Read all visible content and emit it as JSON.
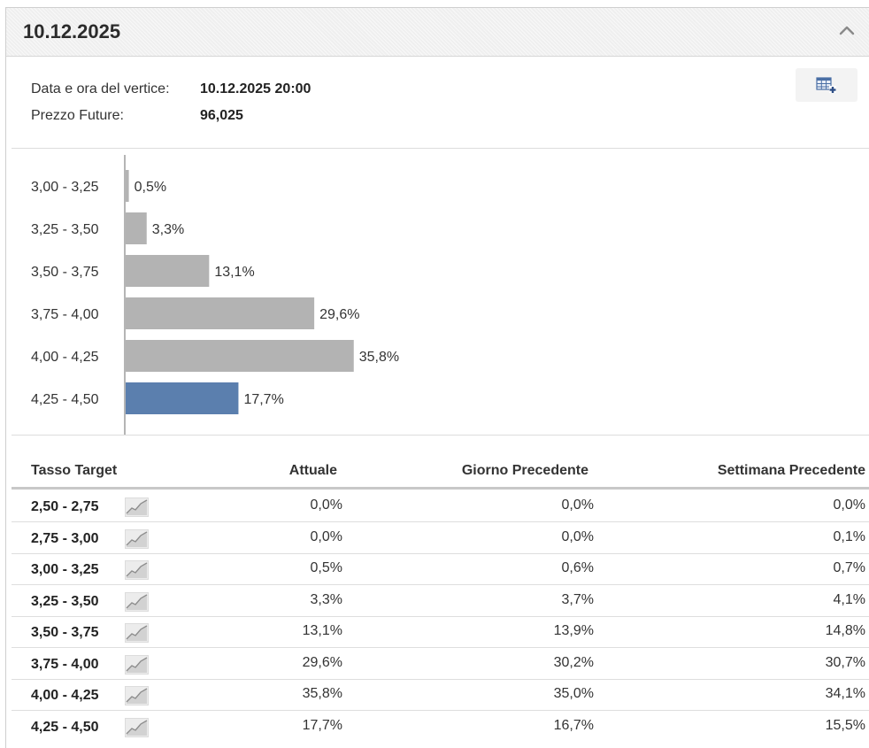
{
  "panel": {
    "title": "10.12.2025"
  },
  "info": {
    "peak_label": "Data e ora del vertice:",
    "peak_value": "10.12.2025 20:00",
    "futures_label": "Prezzo Future:",
    "futures_value": "96,025"
  },
  "icons": {
    "collapse": "chevron-up-icon",
    "export": "table-add-icon",
    "trend": "trend-chart-icon"
  },
  "colors": {
    "bar_default": "#b3b3b3",
    "bar_highlight": "#5b7fae"
  },
  "chart_data": {
    "type": "bar",
    "orientation": "horizontal",
    "categories": [
      "3,00 - 3,25",
      "3,25 - 3,50",
      "3,50 - 3,75",
      "3,75 - 4,00",
      "4,00 - 4,25",
      "4,25 - 4,50"
    ],
    "values": [
      0.5,
      3.3,
      13.1,
      29.6,
      35.8,
      17.7
    ],
    "value_labels": [
      "0,5%",
      "3,3%",
      "13,1%",
      "29,6%",
      "35,8%",
      "17,7%"
    ],
    "highlight_index": 5,
    "xlim": [
      0,
      40
    ],
    "grid": false
  },
  "table": {
    "headers": [
      "Tasso Target",
      "Attuale",
      "Giorno Precedente",
      "Settimana Precedente"
    ],
    "rows": [
      {
        "range": "2,50 - 2,75",
        "current": "0,0%",
        "prev_day": "0,0%",
        "prev_week": "0,0%"
      },
      {
        "range": "2,75 - 3,00",
        "current": "0,0%",
        "prev_day": "0,0%",
        "prev_week": "0,1%"
      },
      {
        "range": "3,00 - 3,25",
        "current": "0,5%",
        "prev_day": "0,6%",
        "prev_week": "0,7%"
      },
      {
        "range": "3,25 - 3,50",
        "current": "3,3%",
        "prev_day": "3,7%",
        "prev_week": "4,1%"
      },
      {
        "range": "3,50 - 3,75",
        "current": "13,1%",
        "prev_day": "13,9%",
        "prev_week": "14,8%"
      },
      {
        "range": "3,75 - 4,00",
        "current": "29,6%",
        "prev_day": "30,2%",
        "prev_week": "30,7%"
      },
      {
        "range": "4,00 - 4,25",
        "current": "35,8%",
        "prev_day": "35,0%",
        "prev_week": "34,1%"
      },
      {
        "range": "4,25 - 4,50",
        "current": "17,7%",
        "prev_day": "16,7%",
        "prev_week": "15,5%"
      }
    ]
  }
}
